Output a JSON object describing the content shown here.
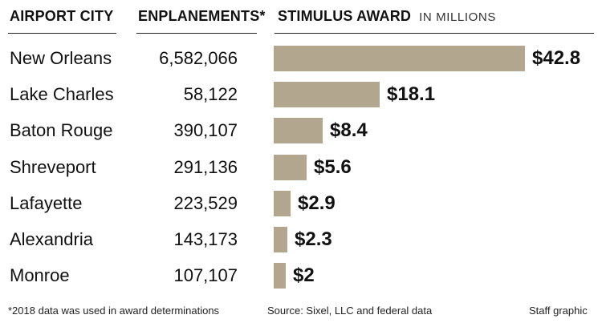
{
  "headers": {
    "city": "AIRPORT CITY",
    "enplanements": "ENPLANEMENTS*",
    "award": "STIMULUS AWARD",
    "award_unit": "IN MILLIONS"
  },
  "colors": {
    "bar": "#b3a68f",
    "text": "#111111",
    "rule": "#222222"
  },
  "chart_data": {
    "type": "bar",
    "orientation": "horizontal",
    "title": "STIMULUS AWARD",
    "subtitle": "IN MILLIONS",
    "categories": [
      "New Orleans",
      "Lake Charles",
      "Baton Rouge",
      "Shreveport",
      "Lafayette",
      "Alexandria",
      "Monroe"
    ],
    "enplanements": [
      "6,582,066",
      "58,122",
      "390,107",
      "291,136",
      "223,529",
      "143,173",
      "107,107"
    ],
    "values": [
      42.8,
      18.1,
      8.4,
      5.6,
      2.9,
      2.3,
      2
    ],
    "value_labels": [
      "$42.8",
      "$18.1",
      "$8.4",
      "$5.6",
      "$2.9",
      "$2.3",
      "$2"
    ],
    "xlim": [
      0,
      42.8
    ],
    "grid": false,
    "legend": "none"
  },
  "footer": {
    "note": "*2018 data was used in award determinations",
    "source": "Source: Sixel, LLC and federal data",
    "credit": "Staff graphic"
  }
}
